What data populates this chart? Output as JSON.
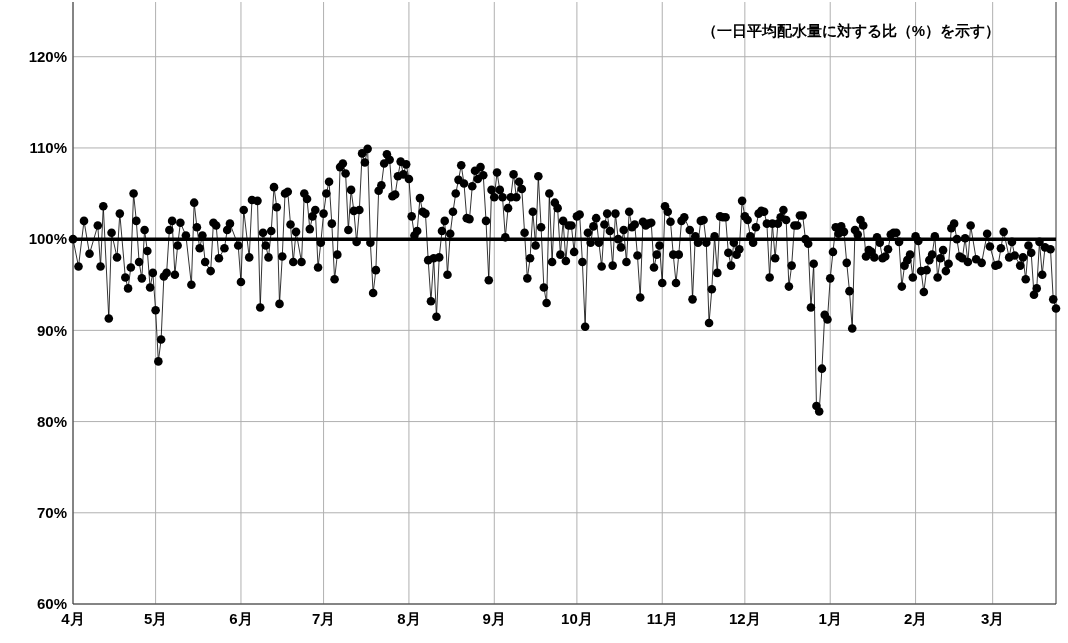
{
  "chart_data": {
    "type": "line",
    "annotations": [
      "（一日平均配水量に対する比（%）を示す）"
    ],
    "categories": [
      "4月",
      null,
      null,
      null,
      null,
      null,
      null,
      null,
      null,
      null,
      null,
      null,
      null,
      null,
      null,
      null,
      null,
      null,
      null,
      null,
      null,
      null,
      null,
      null,
      null,
      null,
      null,
      null,
      null,
      null,
      "5月",
      null,
      null,
      null,
      null,
      null,
      null,
      null,
      null,
      null,
      null,
      null,
      null,
      null,
      null,
      null,
      null,
      null,
      null,
      null,
      null,
      null,
      null,
      null,
      null,
      null,
      null,
      null,
      null,
      null,
      null,
      "6月",
      null,
      null,
      null,
      null,
      null,
      null,
      null,
      null,
      null,
      null,
      null,
      null,
      null,
      null,
      null,
      null,
      null,
      null,
      null,
      null,
      null,
      null,
      null,
      null,
      null,
      null,
      null,
      null,
      null,
      "7月",
      null,
      null,
      null,
      null,
      null,
      null,
      null,
      null,
      null,
      null,
      null,
      null,
      null,
      null,
      null,
      null,
      null,
      null,
      null,
      null,
      null,
      null,
      null,
      null,
      null,
      null,
      null,
      null,
      null,
      null,
      "8月",
      null,
      null,
      null,
      null,
      null,
      null,
      null,
      null,
      null,
      null,
      null,
      null,
      null,
      null,
      null,
      null,
      null,
      null,
      null,
      null,
      null,
      null,
      null,
      null,
      null,
      null,
      null,
      null,
      null,
      null,
      "9月",
      null,
      null,
      null,
      null,
      null,
      null,
      null,
      null,
      null,
      null,
      null,
      null,
      null,
      null,
      null,
      null,
      null,
      null,
      null,
      null,
      null,
      null,
      null,
      null,
      null,
      null,
      null,
      null,
      null,
      "10月",
      null,
      null,
      null,
      null,
      null,
      null,
      null,
      null,
      null,
      null,
      null,
      null,
      null,
      null,
      null,
      null,
      null,
      null,
      null,
      null,
      null,
      null,
      null,
      null,
      null,
      null,
      null,
      null,
      null,
      null,
      "11月",
      null,
      null,
      null,
      null,
      null,
      null,
      null,
      null,
      null,
      null,
      null,
      null,
      null,
      null,
      null,
      null,
      null,
      null,
      null,
      null,
      null,
      null,
      null,
      null,
      null,
      null,
      null,
      null,
      null,
      "12月",
      null,
      null,
      null,
      null,
      null,
      null,
      null,
      null,
      null,
      null,
      null,
      null,
      null,
      null,
      null,
      null,
      null,
      null,
      null,
      null,
      null,
      null,
      null,
      null,
      null,
      null,
      null,
      null,
      null,
      null,
      "1月",
      null,
      null,
      null,
      null,
      null,
      null,
      null,
      null,
      null,
      null,
      null,
      null,
      null,
      null,
      null,
      null,
      null,
      null,
      null,
      null,
      null,
      null,
      null,
      null,
      null,
      null,
      null,
      null,
      null,
      null,
      "2月",
      null,
      null,
      null,
      null,
      null,
      null,
      null,
      null,
      null,
      null,
      null,
      null,
      null,
      null,
      null,
      null,
      null,
      null,
      null,
      null,
      null,
      null,
      null,
      null,
      null,
      null,
      null,
      "3月",
      null,
      null,
      null,
      null,
      null,
      null,
      null,
      null,
      null,
      null,
      null,
      null,
      null,
      null,
      null,
      null,
      null,
      null,
      null,
      null,
      null,
      null,
      null
    ],
    "ylim": [
      60,
      126
    ],
    "yticks": [
      {
        "value": 60,
        "label": "60%"
      },
      {
        "value": 70,
        "label": "70%"
      },
      {
        "value": 80,
        "label": "80%"
      },
      {
        "value": 90,
        "label": "90%"
      },
      {
        "value": 100,
        "label": "100%"
      },
      {
        "value": 110,
        "label": "110%"
      },
      {
        "value": 120,
        "label": "120%"
      }
    ],
    "grid": true,
    "marker": "circle",
    "line_style": "solid",
    "ref_lines": [
      {
        "axis": "y",
        "value": 100,
        "color": "#000000"
      }
    ],
    "series": [
      {
        "color": "#000000",
        "values": [
          100,
          null,
          97,
          null,
          102,
          null,
          98.4,
          null,
          null,
          101.5,
          97,
          103.6,
          null,
          91.3,
          100.7,
          null,
          98,
          102.8,
          null,
          95.8,
          94.6,
          96.9,
          105,
          102,
          97.5,
          95.7,
          101,
          98.7,
          94.7,
          96.3,
          92.2,
          86.6,
          89,
          95.9,
          96.3,
          101,
          102,
          96.1,
          99.3,
          101.8,
          null,
          100.4,
          null,
          95,
          104,
          101.3,
          99,
          100.4,
          97.5,
          null,
          96.5,
          101.8,
          101.5,
          97.9,
          null,
          99,
          101,
          101.7,
          null,
          null,
          99.3,
          95.3,
          103.2,
          null,
          98,
          104.3,
          null,
          104.2,
          92.5,
          100.7,
          99.3,
          98,
          100.9,
          105.7,
          103.5,
          92.9,
          98.1,
          105,
          105.2,
          101.6,
          97.5,
          100.8,
          null,
          97.5,
          105,
          104.4,
          101.1,
          102.5,
          103.2,
          96.9,
          99.6,
          102.8,
          105,
          106.3,
          101.7,
          95.6,
          98.3,
          107.9,
          108.3,
          107.2,
          101,
          105.4,
          103.1,
          99.7,
          103.2,
          109.4,
          108.4,
          109.9,
          99.6,
          94.1,
          96.6,
          105.3,
          105.9,
          108.3,
          109.3,
          108.7,
          104.7,
          104.9,
          106.9,
          108.5,
          107.1,
          108.2,
          106.6,
          102.5,
          100.4,
          100.9,
          104.5,
          103,
          102.8,
          97.7,
          93.2,
          97.9,
          91.5,
          98,
          100.9,
          102,
          96.1,
          100.6,
          103,
          105,
          106.5,
          108.1,
          106.1,
          102.3,
          102.2,
          105.8,
          107.5,
          106.6,
          107.9,
          107,
          102,
          95.5,
          105.4,
          104.6,
          107.3,
          105.4,
          104.6,
          100.2,
          103.4,
          104.6,
          107.1,
          104.6,
          106.3,
          105.5,
          100.7,
          95.7,
          97.9,
          103,
          99.3,
          106.9,
          101.3,
          94.7,
          93,
          105,
          97.5,
          104,
          103.4,
          98.3,
          102,
          97.6,
          101.5,
          101.5,
          98.6,
          102.5,
          102.7,
          97.5,
          90.4,
          100.7,
          99.6,
          101.4,
          102.3,
          99.6,
          97,
          101.6,
          102.8,
          100.9,
          97.1,
          102.8,
          100,
          99.1,
          101,
          97.5,
          103,
          101.3,
          101.6,
          98.2,
          93.6,
          101.9,
          101.5,
          101.7,
          101.8,
          96.9,
          98.3,
          99.3,
          95.2,
          103.6,
          103,
          101.9,
          98.3,
          95.2,
          98.3,
          102,
          102.4,
          null,
          101,
          93.4,
          100.3,
          99.6,
          102,
          102.1,
          99.6,
          90.8,
          94.5,
          100.3,
          96.3,
          102.5,
          102.4,
          102.4,
          98.5,
          97.1,
          99.6,
          98.3,
          98.9,
          104.2,
          102.5,
          102.1,
          100.3,
          99.6,
          101.3,
          102.8,
          103.1,
          103,
          101.7,
          95.8,
          101.7,
          97.9,
          101.7,
          102.4,
          103.2,
          102.1,
          94.8,
          97.1,
          101.5,
          101.5,
          102.6,
          102.6,
          100,
          99.5,
          92.5,
          97.3,
          81.7,
          81.1,
          85.8,
          91.7,
          91.2,
          95.7,
          98.6,
          101.3,
          100.6,
          101.4,
          100.8,
          97.4,
          94.3,
          90.2,
          101,
          100.5,
          102.1,
          101.5,
          98.1,
          98.8,
          98.6,
          98,
          100.2,
          99.6,
          97.9,
          98.1,
          98.9,
          100.5,
          100.7,
          100.7,
          99.7,
          94.8,
          97.1,
          97.7,
          98.3,
          95.8,
          100.3,
          99.8,
          96.5,
          94.2,
          96.6,
          97.7,
          98.3,
          100.3,
          95.8,
          97.9,
          98.8,
          96.5,
          97.3,
          101.2,
          101.7,
          100,
          98.1,
          97.9,
          100.1,
          97.5,
          101.5,
          null,
          97.8,
          null,
          97.4,
          null,
          100.6,
          99.2,
          null,
          97.1,
          97.2,
          99,
          100.8,
          null,
          98,
          99.7,
          98.2,
          null,
          97.1,
          98,
          95.6,
          99.3,
          98.5,
          93.9,
          94.6,
          99.7,
          96.1,
          99.1,
          null,
          98.9,
          93.4,
          92.4
        ]
      }
    ]
  }
}
